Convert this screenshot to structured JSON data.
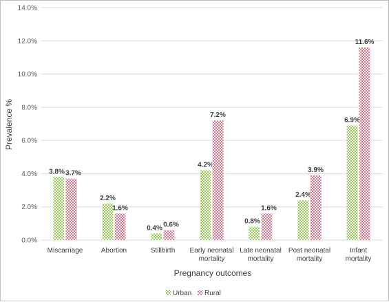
{
  "chart_data": {
    "type": "bar",
    "categories": [
      [
        "Miscarriage"
      ],
      [
        "Abortion"
      ],
      [
        "Stillbirth"
      ],
      [
        "Early neonatal",
        "mortality"
      ],
      [
        "Late neonatal",
        "mortality"
      ],
      [
        "Post neonatal",
        "mortality"
      ],
      [
        "Infant",
        "mortality"
      ]
    ],
    "series": [
      {
        "name": "Urban",
        "values": [
          3.8,
          2.2,
          0.4,
          4.2,
          0.8,
          2.4,
          6.9
        ],
        "labels": [
          "3.8%",
          "2.2%",
          "0.4%",
          "4.2%",
          "0.8%",
          "2.4%",
          "6.9%"
        ],
        "color": "#92d050"
      },
      {
        "name": "Rural",
        "values": [
          3.7,
          1.6,
          0.6,
          7.2,
          1.6,
          3.9,
          11.6
        ],
        "labels": [
          "3.7%",
          "1.6%",
          "0.6%",
          "7.2%",
          "1.6%",
          "3.9%",
          "11.6%"
        ],
        "color": "#ee6e86"
      }
    ],
    "title": "",
    "xlabel": "Pregnancy outcomes",
    "ylabel": "Prevalence %",
    "ylim": [
      0,
      14
    ],
    "yticks": [
      0,
      2,
      4,
      6,
      8,
      10,
      12,
      14
    ],
    "ytick_labels": [
      "0.0%",
      "2.0%",
      "4.0%",
      "6.0%",
      "8.0%",
      "10.0%",
      "12.0%",
      "14.0%"
    ],
    "grid": true,
    "legend": "bottom-center",
    "pattern": "checkered"
  }
}
